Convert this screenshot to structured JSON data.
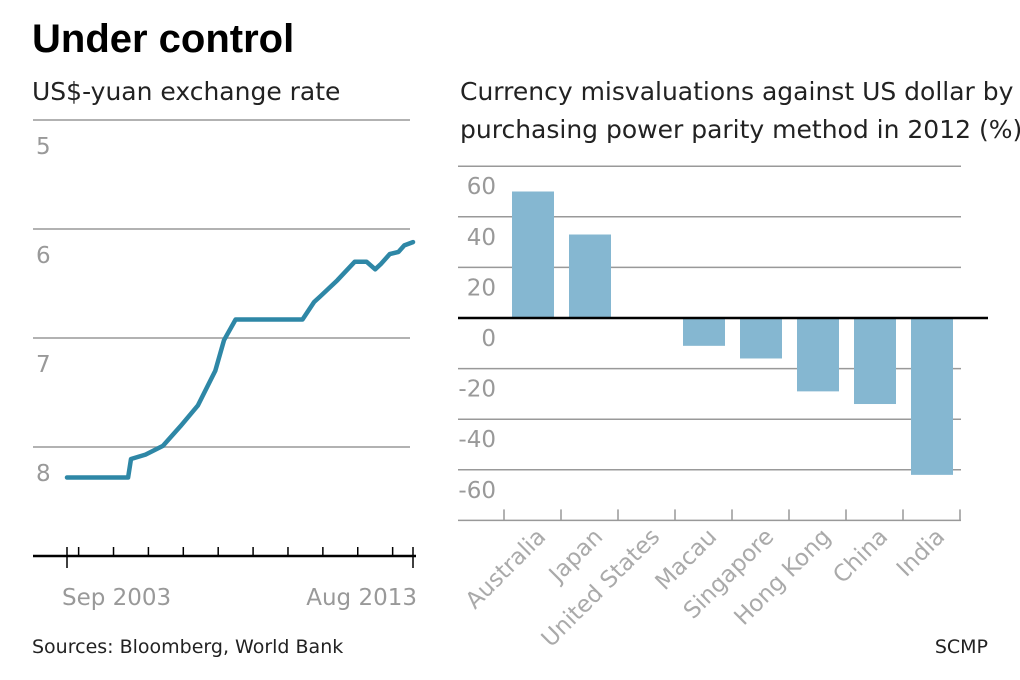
{
  "title": "Under control",
  "source": "Sources: Bloomberg, World Bank",
  "credit": "SCMP",
  "colors": {
    "line": "#2e87a6",
    "bar": "#85b7d1",
    "grid": "#999999",
    "tick_text": "#999999"
  },
  "chart_data": [
    {
      "type": "line",
      "title": "US$-yuan exchange rate",
      "ylim": [
        9,
        4.5
      ],
      "y_inverted": true,
      "yticks": [
        5,
        6,
        7,
        8
      ],
      "xlim": [
        "2003-09",
        "2013-08"
      ],
      "xtick_labels": [
        "Sep 2003",
        "Aug 2013"
      ],
      "grid": true,
      "series": [
        {
          "x": [
            "2003-09",
            "2005-06",
            "2005-07",
            "2005-12",
            "2006-06",
            "2006-12",
            "2007-06",
            "2007-12",
            "2008-03",
            "2008-07",
            "2009-06",
            "2010-06",
            "2010-10",
            "2010-12",
            "2011-06",
            "2011-12",
            "2012-04",
            "2012-07",
            "2012-09",
            "2012-12",
            "2013-03",
            "2013-05",
            "2013-08"
          ],
          "y": [
            8.28,
            8.28,
            8.11,
            8.07,
            7.99,
            7.81,
            7.62,
            7.3,
            7.02,
            6.83,
            6.83,
            6.83,
            6.67,
            6.62,
            6.47,
            6.3,
            6.3,
            6.37,
            6.32,
            6.23,
            6.21,
            6.15,
            6.12
          ]
        }
      ]
    },
    {
      "type": "bar",
      "title": "Currency misvaluations against US dollar by purchasing power parity method in 2012 (%)",
      "title_lines": [
        "Currency misvaluations against US dollar by",
        "purchasing power parity method in 2012 (%)"
      ],
      "categories": [
        "Australia",
        "Japan",
        "United States",
        "Macau",
        "Singapore",
        "Hong Kong",
        "China",
        "India"
      ],
      "values": [
        50,
        33,
        0,
        -11,
        -16,
        -29,
        -34,
        -62
      ],
      "ylim": [
        -80,
        60
      ],
      "yticks": [
        60,
        40,
        20,
        0,
        -20,
        -40,
        -60
      ],
      "grid": true
    }
  ]
}
